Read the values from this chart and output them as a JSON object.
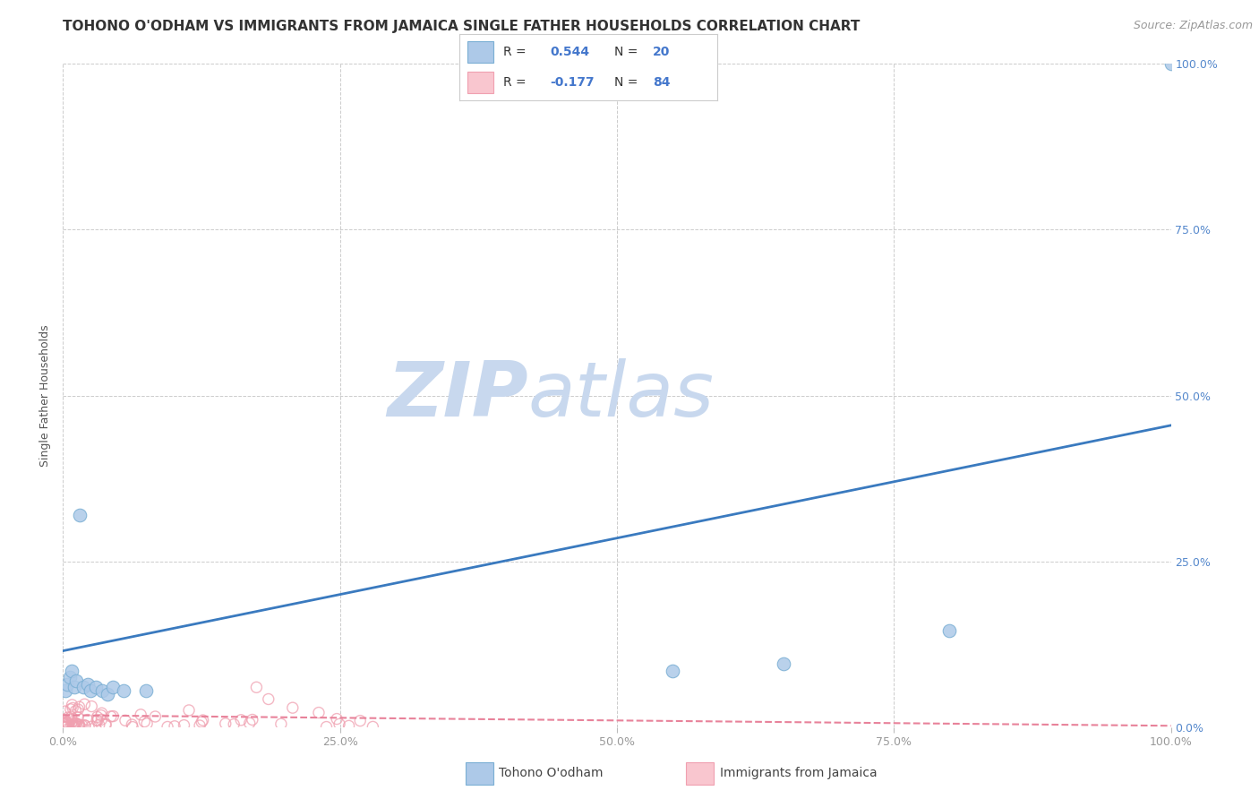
{
  "title": "TOHONO O'ODHAM VS IMMIGRANTS FROM JAMAICA SINGLE FATHER HOUSEHOLDS CORRELATION CHART",
  "source": "Source: ZipAtlas.com",
  "ylabel": "Single Father Households",
  "xlim": [
    0.0,
    1.0
  ],
  "ylim": [
    0.0,
    1.0
  ],
  "xticks": [
    0.0,
    0.25,
    0.5,
    0.75,
    1.0
  ],
  "yticks": [
    0.0,
    0.25,
    0.5,
    0.75,
    1.0
  ],
  "xticklabels": [
    "0.0%",
    "25.0%",
    "50.0%",
    "75.0%",
    "100.0%"
  ],
  "right_yticklabels": [
    "0.0%",
    "25.0%",
    "50.0%",
    "75.0%",
    "100.0%"
  ],
  "blue_R": 0.544,
  "blue_N": 20,
  "pink_R": -0.177,
  "pink_N": 84,
  "blue_fill_color": "#adc9e8",
  "blue_edge_color": "#7bafd4",
  "pink_fill_color": "#f9c6cf",
  "pink_edge_color": "#f0a0b0",
  "blue_line_color": "#3a7abf",
  "pink_line_color": "#e8829a",
  "background_color": "#ffffff",
  "grid_color": "#cccccc",
  "watermark_zip_color": "#c8d8ee",
  "watermark_atlas_color": "#c8d8ee",
  "legend_label_blue": "Tohono O'odham",
  "legend_label_pink": "Immigrants from Jamaica",
  "blue_trend_x0": 0.0,
  "blue_trend_y0": 0.115,
  "blue_trend_x1": 1.0,
  "blue_trend_y1": 0.455,
  "pink_trend_x0": 0.0,
  "pink_trend_y0": 0.018,
  "pink_trend_x1": 1.0,
  "pink_trend_y1": 0.002,
  "blue_scatter_x": [
    0.002,
    0.004,
    0.006,
    0.008,
    0.01,
    0.012,
    0.018,
    0.022,
    0.025,
    0.03,
    0.035,
    0.04,
    0.045,
    0.055,
    0.075,
    0.55,
    0.65,
    0.8,
    1.0,
    0.015
  ],
  "blue_scatter_y": [
    0.055,
    0.065,
    0.075,
    0.085,
    0.06,
    0.07,
    0.06,
    0.065,
    0.055,
    0.06,
    0.055,
    0.05,
    0.06,
    0.055,
    0.055,
    0.085,
    0.095,
    0.145,
    1.0,
    0.32
  ],
  "title_fontsize": 11,
  "axis_label_fontsize": 9,
  "tick_fontsize": 9,
  "source_fontsize": 9,
  "right_tick_color": "#5588cc",
  "legend_text_color": "#333333",
  "legend_num_color": "#4477cc"
}
